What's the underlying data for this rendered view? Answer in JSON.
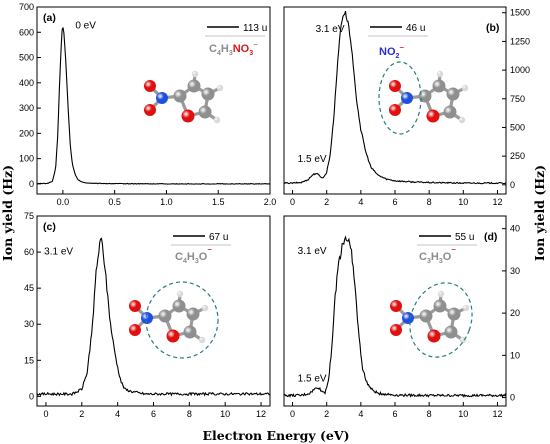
{
  "colors": {
    "line": "#000000",
    "formula_gray": "#8c8c8c",
    "formula_red": "#e0151b",
    "formula_blue": "#2a2fd6",
    "ellipse": "#2b7a86"
  },
  "axes": {
    "xlabel": "Electron Energy (eV)",
    "ylabel_left": "Ion yield (Hz)",
    "ylabel_right": "Ion yield (Hz)"
  },
  "chart_data": [
    {
      "type": "line",
      "panel_label": "(a)",
      "title": "C4H3NO3⁻",
      "formula_parts": [
        {
          "text": "C",
          "style": "gray",
          "pos": "base"
        },
        {
          "text": "4",
          "style": "gray",
          "pos": "sub"
        },
        {
          "text": "H",
          "style": "gray",
          "pos": "base"
        },
        {
          "text": "3",
          "style": "gray",
          "pos": "sub"
        },
        {
          "text": "NO",
          "style": "red",
          "pos": "base"
        },
        {
          "text": "3",
          "style": "red",
          "pos": "sub"
        },
        {
          "text": "⁻",
          "style": "gray",
          "pos": "sup"
        }
      ],
      "legend": "113 u",
      "x_ticks": [
        "0.0",
        "0.5",
        "1.0",
        "1.5",
        "2.0"
      ],
      "y_ticks": [
        "0",
        "100",
        "200",
        "300",
        "400",
        "500",
        "600",
        "700"
      ],
      "y_axis_side": "left",
      "xlim": [
        -0.25,
        2.0
      ],
      "ylim": [
        -40,
        700
      ],
      "annotations": [
        {
          "text": "0 eV",
          "x": 0.12,
          "y": 615
        }
      ],
      "series": [
        {
          "x": [
            -0.25,
            -0.15,
            -0.1,
            -0.07,
            -0.05,
            -0.03,
            -0.01,
            0.0,
            0.01,
            0.03,
            0.05,
            0.07,
            0.09,
            0.12,
            0.15,
            0.2,
            0.3,
            0.5,
            1.0,
            1.5,
            2.0
          ],
          "y": [
            1,
            2,
            10,
            60,
            190,
            420,
            600,
            625,
            595,
            470,
            300,
            160,
            80,
            35,
            15,
            5,
            2,
            1,
            0,
            0,
            0
          ]
        }
      ]
    },
    {
      "type": "line",
      "panel_label": "(b)",
      "title": "NO2⁻",
      "formula_parts": [
        {
          "text": "NO",
          "style": "blue",
          "pos": "base"
        },
        {
          "text": "2",
          "style": "blue",
          "pos": "sub"
        },
        {
          "text": "⁻",
          "style": "red",
          "pos": "sup"
        }
      ],
      "legend": "46 u",
      "x_ticks": [
        "0",
        "2",
        "4",
        "6",
        "8",
        "10",
        "12"
      ],
      "y_ticks": [
        "0",
        "250",
        "500",
        "750",
        "1000",
        "1250",
        "1500"
      ],
      "y_axis_side": "right",
      "xlim": [
        -0.5,
        12.5
      ],
      "ylim": [
        -80,
        1550
      ],
      "annotations": [
        {
          "text": "3.1 eV",
          "x": 1.35,
          "y": 1330
        },
        {
          "text": "1.5 eV",
          "x": 0.3,
          "y": 200
        }
      ],
      "series": [
        {
          "x": [
            -0.5,
            0.0,
            0.5,
            0.9,
            1.2,
            1.4,
            1.6,
            1.8,
            2.0,
            2.2,
            2.4,
            2.6,
            2.8,
            2.95,
            3.1,
            3.3,
            3.5,
            3.7,
            4.0,
            4.3,
            4.6,
            5.0,
            5.5,
            6.0,
            7.0,
            8.0,
            10.0,
            12.5
          ],
          "y": [
            15,
            15,
            20,
            45,
            90,
            100,
            75,
            60,
            110,
            260,
            560,
            980,
            1350,
            1480,
            1500,
            1380,
            1120,
            800,
            480,
            280,
            150,
            85,
            50,
            35,
            25,
            20,
            15,
            15
          ]
        }
      ]
    },
    {
      "type": "line",
      "panel_label": "(c)",
      "title": "C4H3O⁻",
      "formula_parts": [
        {
          "text": "C",
          "style": "gray",
          "pos": "base"
        },
        {
          "text": "4",
          "style": "gray",
          "pos": "sub"
        },
        {
          "text": "H",
          "style": "gray",
          "pos": "base"
        },
        {
          "text": "3",
          "style": "gray",
          "pos": "sub"
        },
        {
          "text": "O",
          "style": "gray",
          "pos": "base"
        },
        {
          "text": "⁻",
          "style": "red",
          "pos": "sup"
        }
      ],
      "legend": "67 u",
      "x_ticks": [
        "0",
        "2",
        "4",
        "6",
        "8",
        "10",
        "12"
      ],
      "y_ticks": [
        "0",
        "15",
        "30",
        "45",
        "60",
        "75"
      ],
      "y_axis_side": "left",
      "xlim": [
        -0.5,
        12.5
      ],
      "ylim": [
        -4,
        75
      ],
      "annotations": [
        {
          "text": "3.1 eV",
          "x": -0.1,
          "y": 59
        }
      ],
      "series": [
        {
          "x": [
            -0.5,
            0.5,
            1.5,
            2.0,
            2.3,
            2.6,
            2.8,
            3.0,
            3.1,
            3.2,
            3.4,
            3.6,
            3.8,
            4.0,
            4.2,
            4.4,
            4.8,
            5.5,
            7.0,
            10.0,
            12.5
          ],
          "y": [
            1,
            1,
            1,
            3,
            10,
            30,
            52,
            63,
            65,
            60,
            45,
            30,
            20,
            12,
            6,
            3,
            2,
            1,
            1,
            1,
            1
          ]
        }
      ]
    },
    {
      "type": "line",
      "panel_label": "(d)",
      "title": "C3H3O⁻",
      "formula_parts": [
        {
          "text": "C",
          "style": "gray",
          "pos": "base"
        },
        {
          "text": "3",
          "style": "gray",
          "pos": "sub"
        },
        {
          "text": "H",
          "style": "gray",
          "pos": "base"
        },
        {
          "text": "3",
          "style": "gray",
          "pos": "sub"
        },
        {
          "text": "O",
          "style": "gray",
          "pos": "base"
        },
        {
          "text": "⁻",
          "style": "red",
          "pos": "sup"
        }
      ],
      "legend": "55 u",
      "x_ticks": [
        "0",
        "2",
        "4",
        "6",
        "8",
        "10",
        "12"
      ],
      "y_ticks": [
        "0",
        "10",
        "20",
        "30",
        "40"
      ],
      "y_axis_side": "right",
      "xlim": [
        -0.5,
        12.5
      ],
      "ylim": [
        -2,
        43
      ],
      "annotations": [
        {
          "text": "3.1 eV",
          "x": 0.3,
          "y": 34
        },
        {
          "text": "1.5 eV",
          "x": 0.3,
          "y": 3.8
        }
      ],
      "series": [
        {
          "x": [
            -0.5,
            0.5,
            1.0,
            1.3,
            1.5,
            1.7,
            1.9,
            2.1,
            2.3,
            2.5,
            2.7,
            2.9,
            3.1,
            3.3,
            3.5,
            3.7,
            3.9,
            4.1,
            4.3,
            4.6,
            5.0,
            6.0,
            8.0,
            12.5
          ],
          "y": [
            0.5,
            0.5,
            1.0,
            2.0,
            2.5,
            1.5,
            1.2,
            4,
            12,
            24,
            32,
            36,
            38,
            37,
            33,
            24,
            14,
            7,
            4,
            2,
            1,
            0.6,
            0.5,
            0.5
          ]
        }
      ]
    }
  ]
}
